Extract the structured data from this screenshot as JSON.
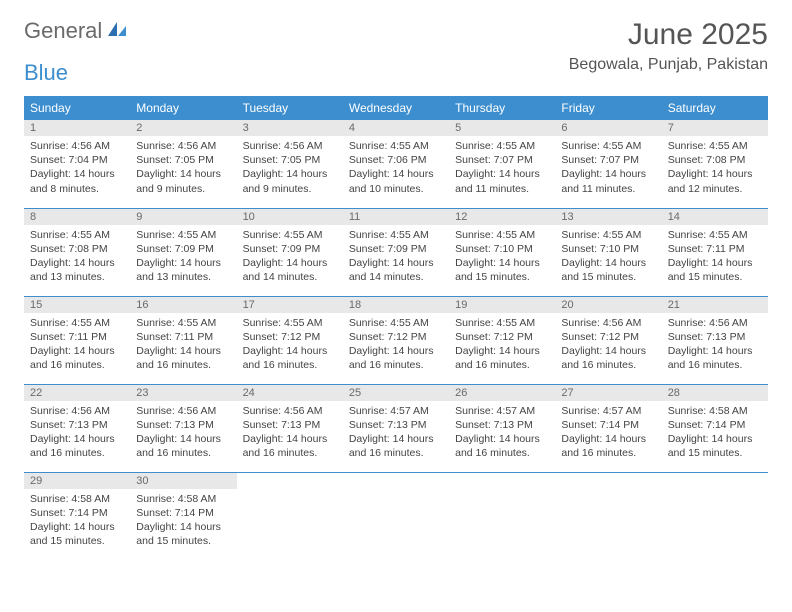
{
  "logo": {
    "text_gray": "General",
    "text_blue": "Blue"
  },
  "title": "June 2025",
  "location": "Begowala, Punjab, Pakistan",
  "header_bg": "#3c8ecf",
  "days_of_week": [
    "Sunday",
    "Monday",
    "Tuesday",
    "Wednesday",
    "Thursday",
    "Friday",
    "Saturday"
  ],
  "weeks": [
    [
      {
        "n": "1",
        "sr": "4:56 AM",
        "ss": "7:04 PM",
        "dl": "14 hours and 8 minutes."
      },
      {
        "n": "2",
        "sr": "4:56 AM",
        "ss": "7:05 PM",
        "dl": "14 hours and 9 minutes."
      },
      {
        "n": "3",
        "sr": "4:56 AM",
        "ss": "7:05 PM",
        "dl": "14 hours and 9 minutes."
      },
      {
        "n": "4",
        "sr": "4:55 AM",
        "ss": "7:06 PM",
        "dl": "14 hours and 10 minutes."
      },
      {
        "n": "5",
        "sr": "4:55 AM",
        "ss": "7:07 PM",
        "dl": "14 hours and 11 minutes."
      },
      {
        "n": "6",
        "sr": "4:55 AM",
        "ss": "7:07 PM",
        "dl": "14 hours and 11 minutes."
      },
      {
        "n": "7",
        "sr": "4:55 AM",
        "ss": "7:08 PM",
        "dl": "14 hours and 12 minutes."
      }
    ],
    [
      {
        "n": "8",
        "sr": "4:55 AM",
        "ss": "7:08 PM",
        "dl": "14 hours and 13 minutes."
      },
      {
        "n": "9",
        "sr": "4:55 AM",
        "ss": "7:09 PM",
        "dl": "14 hours and 13 minutes."
      },
      {
        "n": "10",
        "sr": "4:55 AM",
        "ss": "7:09 PM",
        "dl": "14 hours and 14 minutes."
      },
      {
        "n": "11",
        "sr": "4:55 AM",
        "ss": "7:09 PM",
        "dl": "14 hours and 14 minutes."
      },
      {
        "n": "12",
        "sr": "4:55 AM",
        "ss": "7:10 PM",
        "dl": "14 hours and 15 minutes."
      },
      {
        "n": "13",
        "sr": "4:55 AM",
        "ss": "7:10 PM",
        "dl": "14 hours and 15 minutes."
      },
      {
        "n": "14",
        "sr": "4:55 AM",
        "ss": "7:11 PM",
        "dl": "14 hours and 15 minutes."
      }
    ],
    [
      {
        "n": "15",
        "sr": "4:55 AM",
        "ss": "7:11 PM",
        "dl": "14 hours and 16 minutes."
      },
      {
        "n": "16",
        "sr": "4:55 AM",
        "ss": "7:11 PM",
        "dl": "14 hours and 16 minutes."
      },
      {
        "n": "17",
        "sr": "4:55 AM",
        "ss": "7:12 PM",
        "dl": "14 hours and 16 minutes."
      },
      {
        "n": "18",
        "sr": "4:55 AM",
        "ss": "7:12 PM",
        "dl": "14 hours and 16 minutes."
      },
      {
        "n": "19",
        "sr": "4:55 AM",
        "ss": "7:12 PM",
        "dl": "14 hours and 16 minutes."
      },
      {
        "n": "20",
        "sr": "4:56 AM",
        "ss": "7:12 PM",
        "dl": "14 hours and 16 minutes."
      },
      {
        "n": "21",
        "sr": "4:56 AM",
        "ss": "7:13 PM",
        "dl": "14 hours and 16 minutes."
      }
    ],
    [
      {
        "n": "22",
        "sr": "4:56 AM",
        "ss": "7:13 PM",
        "dl": "14 hours and 16 minutes."
      },
      {
        "n": "23",
        "sr": "4:56 AM",
        "ss": "7:13 PM",
        "dl": "14 hours and 16 minutes."
      },
      {
        "n": "24",
        "sr": "4:56 AM",
        "ss": "7:13 PM",
        "dl": "14 hours and 16 minutes."
      },
      {
        "n": "25",
        "sr": "4:57 AM",
        "ss": "7:13 PM",
        "dl": "14 hours and 16 minutes."
      },
      {
        "n": "26",
        "sr": "4:57 AM",
        "ss": "7:13 PM",
        "dl": "14 hours and 16 minutes."
      },
      {
        "n": "27",
        "sr": "4:57 AM",
        "ss": "7:14 PM",
        "dl": "14 hours and 16 minutes."
      },
      {
        "n": "28",
        "sr": "4:58 AM",
        "ss": "7:14 PM",
        "dl": "14 hours and 15 minutes."
      }
    ],
    [
      {
        "n": "29",
        "sr": "4:58 AM",
        "ss": "7:14 PM",
        "dl": "14 hours and 15 minutes."
      },
      {
        "n": "30",
        "sr": "4:58 AM",
        "ss": "7:14 PM",
        "dl": "14 hours and 15 minutes."
      },
      null,
      null,
      null,
      null,
      null
    ]
  ],
  "labels": {
    "sunrise": "Sunrise: ",
    "sunset": "Sunset: ",
    "daylight": "Daylight: "
  }
}
